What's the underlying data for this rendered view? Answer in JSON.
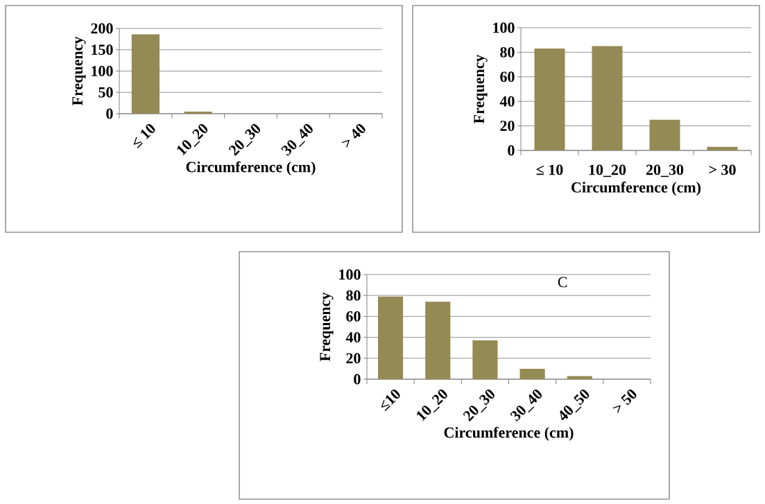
{
  "chart_data": [
    {
      "type": "bar",
      "xlabel": "Circumference (cm)",
      "ylabel": "Frequency",
      "categories": [
        "≤ 10",
        "10_20",
        "20_30",
        "30_40",
        "> 40"
      ],
      "values": [
        186,
        5,
        0,
        0,
        0
      ],
      "color": "#948a54",
      "ylim": [
        0,
        200
      ],
      "yticks": [
        0,
        50,
        100,
        150,
        200
      ],
      "grid": "y"
    },
    {
      "type": "bar",
      "xlabel": "Circumference (cm)",
      "ylabel": "Frequency",
      "categories": [
        "≤ 10",
        "10_20",
        "20_30",
        "> 30"
      ],
      "values": [
        83,
        85,
        25,
        3
      ],
      "color": "#948a54",
      "ylim": [
        0,
        100
      ],
      "yticks": [
        0,
        20,
        40,
        60,
        80,
        100
      ],
      "grid": "y"
    },
    {
      "type": "bar",
      "xlabel": "Circumference (cm)",
      "ylabel": "Frequency",
      "categories": [
        "≤10",
        "10_20",
        "20_30",
        "30_40",
        "40_50",
        "> 50"
      ],
      "values": [
        79,
        74,
        37,
        10,
        3,
        0
      ],
      "color": "#948a54",
      "ylim": [
        0,
        100
      ],
      "yticks": [
        0,
        20,
        40,
        60,
        80,
        100
      ],
      "grid": "y",
      "annotations": [
        "C"
      ]
    }
  ]
}
